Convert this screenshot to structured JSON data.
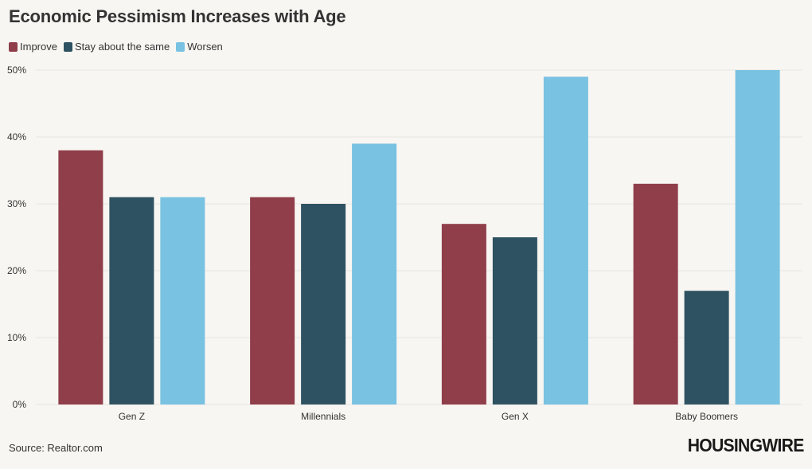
{
  "chart_data": {
    "type": "bar",
    "title": "Economic Pessimism Increases with Age",
    "categories": [
      "Gen Z",
      "Millennials",
      "Gen X",
      "Baby Boomers"
    ],
    "series": [
      {
        "name": "Improve",
        "color": "#8f3e4a",
        "values": [
          38,
          31,
          27,
          33
        ]
      },
      {
        "name": "Stay about the same",
        "color": "#2e5262",
        "values": [
          31,
          30,
          25,
          17
        ]
      },
      {
        "name": "Worsen",
        "color": "#79c2e1",
        "values": [
          31,
          39,
          49,
          50
        ]
      }
    ],
    "ylim": [
      0,
      50
    ],
    "yticks": [
      "0%",
      "10%",
      "20%",
      "30%",
      "40%",
      "50%"
    ],
    "xlabel": "",
    "ylabel": "",
    "grid": true,
    "legend_position": "top-left"
  },
  "legend_colors": {
    "improve": "#8f3e4a",
    "same": "#2e5262",
    "worsen": "#79c2e1"
  },
  "footer": {
    "source": "Source: Realtor.com",
    "logo_text": "HOUSINGWIRE"
  }
}
